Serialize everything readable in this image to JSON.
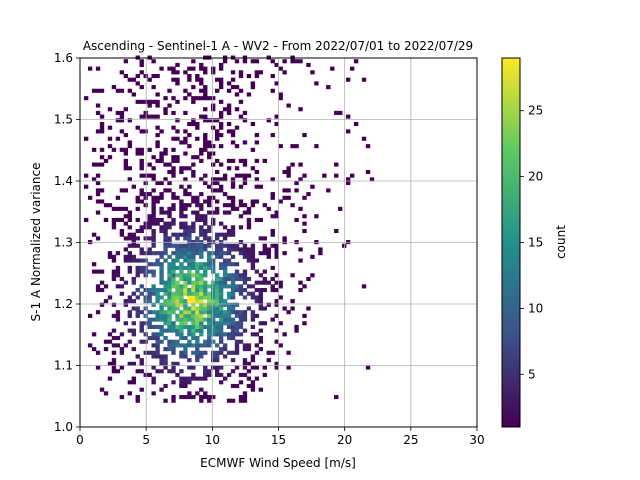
{
  "chart_data": {
    "type": "heatmap",
    "title": "Ascending - Sentinel-1 A - WV2 - From 2022/07/01 to 2022/07/29",
    "xlabel": "ECMWF Wind Speed [m/s]",
    "ylabel": "S-1 A Normalized variance",
    "xlim": [
      0,
      30
    ],
    "ylim": [
      1.0,
      1.6
    ],
    "xticks": [
      "0",
      "5",
      "10",
      "15",
      "20",
      "25",
      "30"
    ],
    "yticks": [
      "1.0",
      "1.1",
      "1.2",
      "1.3",
      "1.4",
      "1.5",
      "1.6"
    ],
    "grid": true,
    "colormap": "viridis",
    "colorbar": {
      "label": "count",
      "range": [
        1,
        29
      ],
      "ticks": [
        "5",
        "10",
        "15",
        "20",
        "25"
      ]
    },
    "bins": {
      "x_width": 0.3,
      "y_width": 0.006
    },
    "density_peak": {
      "x": 8.3,
      "y": 1.205,
      "count": 29
    },
    "point_cloud_extent": {
      "x": [
        0.3,
        22
      ],
      "y": [
        1.04,
        1.6
      ]
    }
  }
}
